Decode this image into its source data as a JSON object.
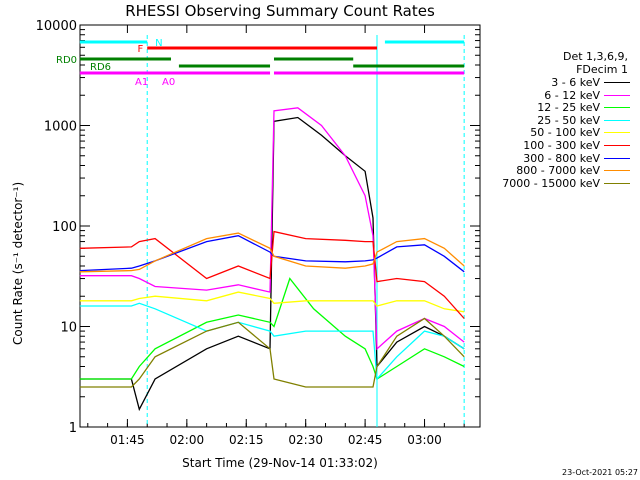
{
  "chart_data": {
    "type": "line",
    "title": "RHESSI Observing Summary Count Rates",
    "xlabel": "Start Time (29-Nov-14 01:33:02)",
    "ylabel": "Count Rate (s⁻¹ detector⁻¹)",
    "x_scale": "time",
    "y_scale": "log",
    "xlim": [
      "01:33:02",
      "03:14:00"
    ],
    "ylim": [
      1,
      10000
    ],
    "x_ticks": [
      "01:45",
      "02:00",
      "02:15",
      "02:30",
      "02:45",
      "03:00"
    ],
    "y_ticks": [
      "1",
      "10",
      "100",
      "1000",
      "10000"
    ],
    "grid": false,
    "legend_position": "right",
    "legend_header": [
      "Det 1,3,6,9,",
      "FDecim 1"
    ],
    "series": [
      {
        "name": "3 - 6 keV",
        "color": "#000000",
        "points": [
          [
            "01:33",
            3
          ],
          [
            "01:46",
            3
          ],
          [
            "01:48",
            1.5
          ],
          [
            "01:52",
            3
          ],
          [
            "02:05",
            6
          ],
          [
            "02:13",
            8
          ],
          [
            "02:21",
            6
          ],
          [
            "02:22",
            1100
          ],
          [
            "02:28",
            1200
          ],
          [
            "02:34",
            800
          ],
          [
            "02:40",
            500
          ],
          [
            "02:45",
            350
          ],
          [
            "02:47",
            120
          ],
          [
            "02:48",
            4
          ],
          [
            "02:53",
            7
          ],
          [
            "03:00",
            10
          ],
          [
            "03:05",
            8
          ],
          [
            "03:10",
            6
          ]
        ]
      },
      {
        "name": "6 - 12 keV",
        "color": "#ff00ff",
        "points": [
          [
            "01:33",
            32
          ],
          [
            "01:46",
            32
          ],
          [
            "01:48",
            30
          ],
          [
            "01:52",
            25
          ],
          [
            "02:05",
            23
          ],
          [
            "02:13",
            26
          ],
          [
            "02:21",
            22
          ],
          [
            "02:22",
            1400
          ],
          [
            "02:28",
            1500
          ],
          [
            "02:34",
            1000
          ],
          [
            "02:40",
            500
          ],
          [
            "02:45",
            200
          ],
          [
            "02:47",
            80
          ],
          [
            "02:48",
            6
          ],
          [
            "02:53",
            9
          ],
          [
            "03:00",
            12
          ],
          [
            "03:05",
            10
          ],
          [
            "03:10",
            7
          ]
        ]
      },
      {
        "name": "12 - 25 keV",
        "color": "#00ff00",
        "points": [
          [
            "01:33",
            3
          ],
          [
            "01:46",
            3
          ],
          [
            "01:48",
            4
          ],
          [
            "01:52",
            6
          ],
          [
            "02:05",
            11
          ],
          [
            "02:13",
            13
          ],
          [
            "02:21",
            11
          ],
          [
            "02:22",
            10
          ],
          [
            "02:26",
            30
          ],
          [
            "02:32",
            15
          ],
          [
            "02:40",
            8
          ],
          [
            "02:45",
            6
          ],
          [
            "02:47",
            4
          ],
          [
            "02:48",
            3
          ],
          [
            "02:53",
            4
          ],
          [
            "03:00",
            6
          ],
          [
            "03:05",
            5
          ],
          [
            "03:10",
            4
          ]
        ]
      },
      {
        "name": "25 - 50 keV",
        "color": "#00ffff",
        "points": [
          [
            "01:33",
            16
          ],
          [
            "01:46",
            16
          ],
          [
            "01:48",
            17
          ],
          [
            "01:52",
            15
          ],
          [
            "02:05",
            9
          ],
          [
            "02:13",
            11
          ],
          [
            "02:21",
            9
          ],
          [
            "02:22",
            8
          ],
          [
            "02:30",
            9
          ],
          [
            "02:40",
            9
          ],
          [
            "02:45",
            9
          ],
          [
            "02:47",
            9
          ],
          [
            "02:48",
            3
          ],
          [
            "02:53",
            5
          ],
          [
            "03:00",
            9
          ],
          [
            "03:05",
            8
          ],
          [
            "03:10",
            6
          ]
        ]
      },
      {
        "name": "50 - 100 keV",
        "color": "#ffff00",
        "points": [
          [
            "01:33",
            18
          ],
          [
            "01:46",
            18
          ],
          [
            "01:48",
            19
          ],
          [
            "01:52",
            20
          ],
          [
            "02:05",
            18
          ],
          [
            "02:13",
            22
          ],
          [
            "02:21",
            19
          ],
          [
            "02:22",
            17
          ],
          [
            "02:30",
            18
          ],
          [
            "02:40",
            18
          ],
          [
            "02:45",
            18
          ],
          [
            "02:47",
            18
          ],
          [
            "02:48",
            16
          ],
          [
            "02:53",
            18
          ],
          [
            "03:00",
            18
          ],
          [
            "03:05",
            15
          ],
          [
            "03:10",
            14
          ]
        ]
      },
      {
        "name": "100 - 300 keV",
        "color": "#ff0000",
        "points": [
          [
            "01:33",
            60
          ],
          [
            "01:46",
            62
          ],
          [
            "01:48",
            70
          ],
          [
            "01:52",
            75
          ],
          [
            "02:05",
            30
          ],
          [
            "02:13",
            40
          ],
          [
            "02:21",
            30
          ],
          [
            "02:22",
            88
          ],
          [
            "02:30",
            75
          ],
          [
            "02:40",
            72
          ],
          [
            "02:45",
            70
          ],
          [
            "02:47",
            70
          ],
          [
            "02:48",
            28
          ],
          [
            "02:53",
            30
          ],
          [
            "03:00",
            28
          ],
          [
            "03:05",
            20
          ],
          [
            "03:10",
            12
          ]
        ]
      },
      {
        "name": "300 - 800 keV",
        "color": "#0000ff",
        "points": [
          [
            "01:33",
            36
          ],
          [
            "01:46",
            38
          ],
          [
            "01:48",
            40
          ],
          [
            "01:52",
            45
          ],
          [
            "02:05",
            70
          ],
          [
            "02:13",
            80
          ],
          [
            "02:21",
            55
          ],
          [
            "02:22",
            50
          ],
          [
            "02:30",
            45
          ],
          [
            "02:40",
            44
          ],
          [
            "02:45",
            45
          ],
          [
            "02:47",
            46
          ],
          [
            "02:48",
            48
          ],
          [
            "02:53",
            62
          ],
          [
            "03:00",
            65
          ],
          [
            "03:05",
            50
          ],
          [
            "03:10",
            35
          ]
        ]
      },
      {
        "name": "800 - 7000 keV",
        "color": "#ff8c00",
        "points": [
          [
            "01:33",
            35
          ],
          [
            "01:46",
            36
          ],
          [
            "01:48",
            37
          ],
          [
            "01:52",
            45
          ],
          [
            "02:05",
            75
          ],
          [
            "02:13",
            85
          ],
          [
            "02:21",
            60
          ],
          [
            "02:22",
            50
          ],
          [
            "02:30",
            40
          ],
          [
            "02:40",
            38
          ],
          [
            "02:45",
            40
          ],
          [
            "02:47",
            42
          ],
          [
            "02:48",
            55
          ],
          [
            "02:53",
            70
          ],
          [
            "03:00",
            75
          ],
          [
            "03:05",
            60
          ],
          [
            "03:10",
            40
          ]
        ]
      },
      {
        "name": "7000 - 15000 keV",
        "color": "#808000",
        "points": [
          [
            "01:33",
            2.5
          ],
          [
            "01:46",
            2.5
          ],
          [
            "01:48",
            3
          ],
          [
            "01:52",
            5
          ],
          [
            "02:05",
            9
          ],
          [
            "02:13",
            11
          ],
          [
            "02:21",
            6
          ],
          [
            "02:22",
            3
          ],
          [
            "02:30",
            2.5
          ],
          [
            "02:40",
            2.5
          ],
          [
            "02:45",
            2.5
          ],
          [
            "02:47",
            2.5
          ],
          [
            "02:48",
            4
          ],
          [
            "02:53",
            8
          ],
          [
            "03:00",
            12
          ],
          [
            "03:05",
            8
          ],
          [
            "03:10",
            5
          ]
        ]
      }
    ],
    "flags": [
      {
        "label": "N",
        "color": "#00ffff",
        "segments": [
          [
            "01:33",
            "01:50"
          ],
          [
            "02:50",
            "03:10"
          ]
        ]
      },
      {
        "label": "F",
        "color": "#ff0000",
        "segments": [
          [
            "01:50",
            "02:48"
          ]
        ]
      },
      {
        "label": "RD0",
        "color": "#008000",
        "segments": [
          [
            "01:33",
            "01:56"
          ],
          [
            "02:22",
            "02:42"
          ]
        ]
      },
      {
        "label": "RD6",
        "color": "#008000",
        "segments": [
          [
            "01:58",
            "02:21"
          ],
          [
            "02:42",
            "03:10"
          ]
        ]
      },
      {
        "label": "A1",
        "color": "#ff00ff",
        "segments": [
          [
            "01:33",
            "02:21"
          ],
          [
            "02:22",
            "03:10"
          ]
        ]
      },
      {
        "label": "A0",
        "color": "#ff00ff",
        "segments": []
      }
    ],
    "vertical_markers": [
      {
        "time": "01:50",
        "color": "#00ffff",
        "style": "dashed"
      },
      {
        "time": "02:48",
        "color": "#00ffff",
        "style": "solid"
      },
      {
        "time": "03:10",
        "color": "#00ffff",
        "style": "dashed"
      }
    ]
  },
  "timestamp": "23-Oct-2021 05:27"
}
